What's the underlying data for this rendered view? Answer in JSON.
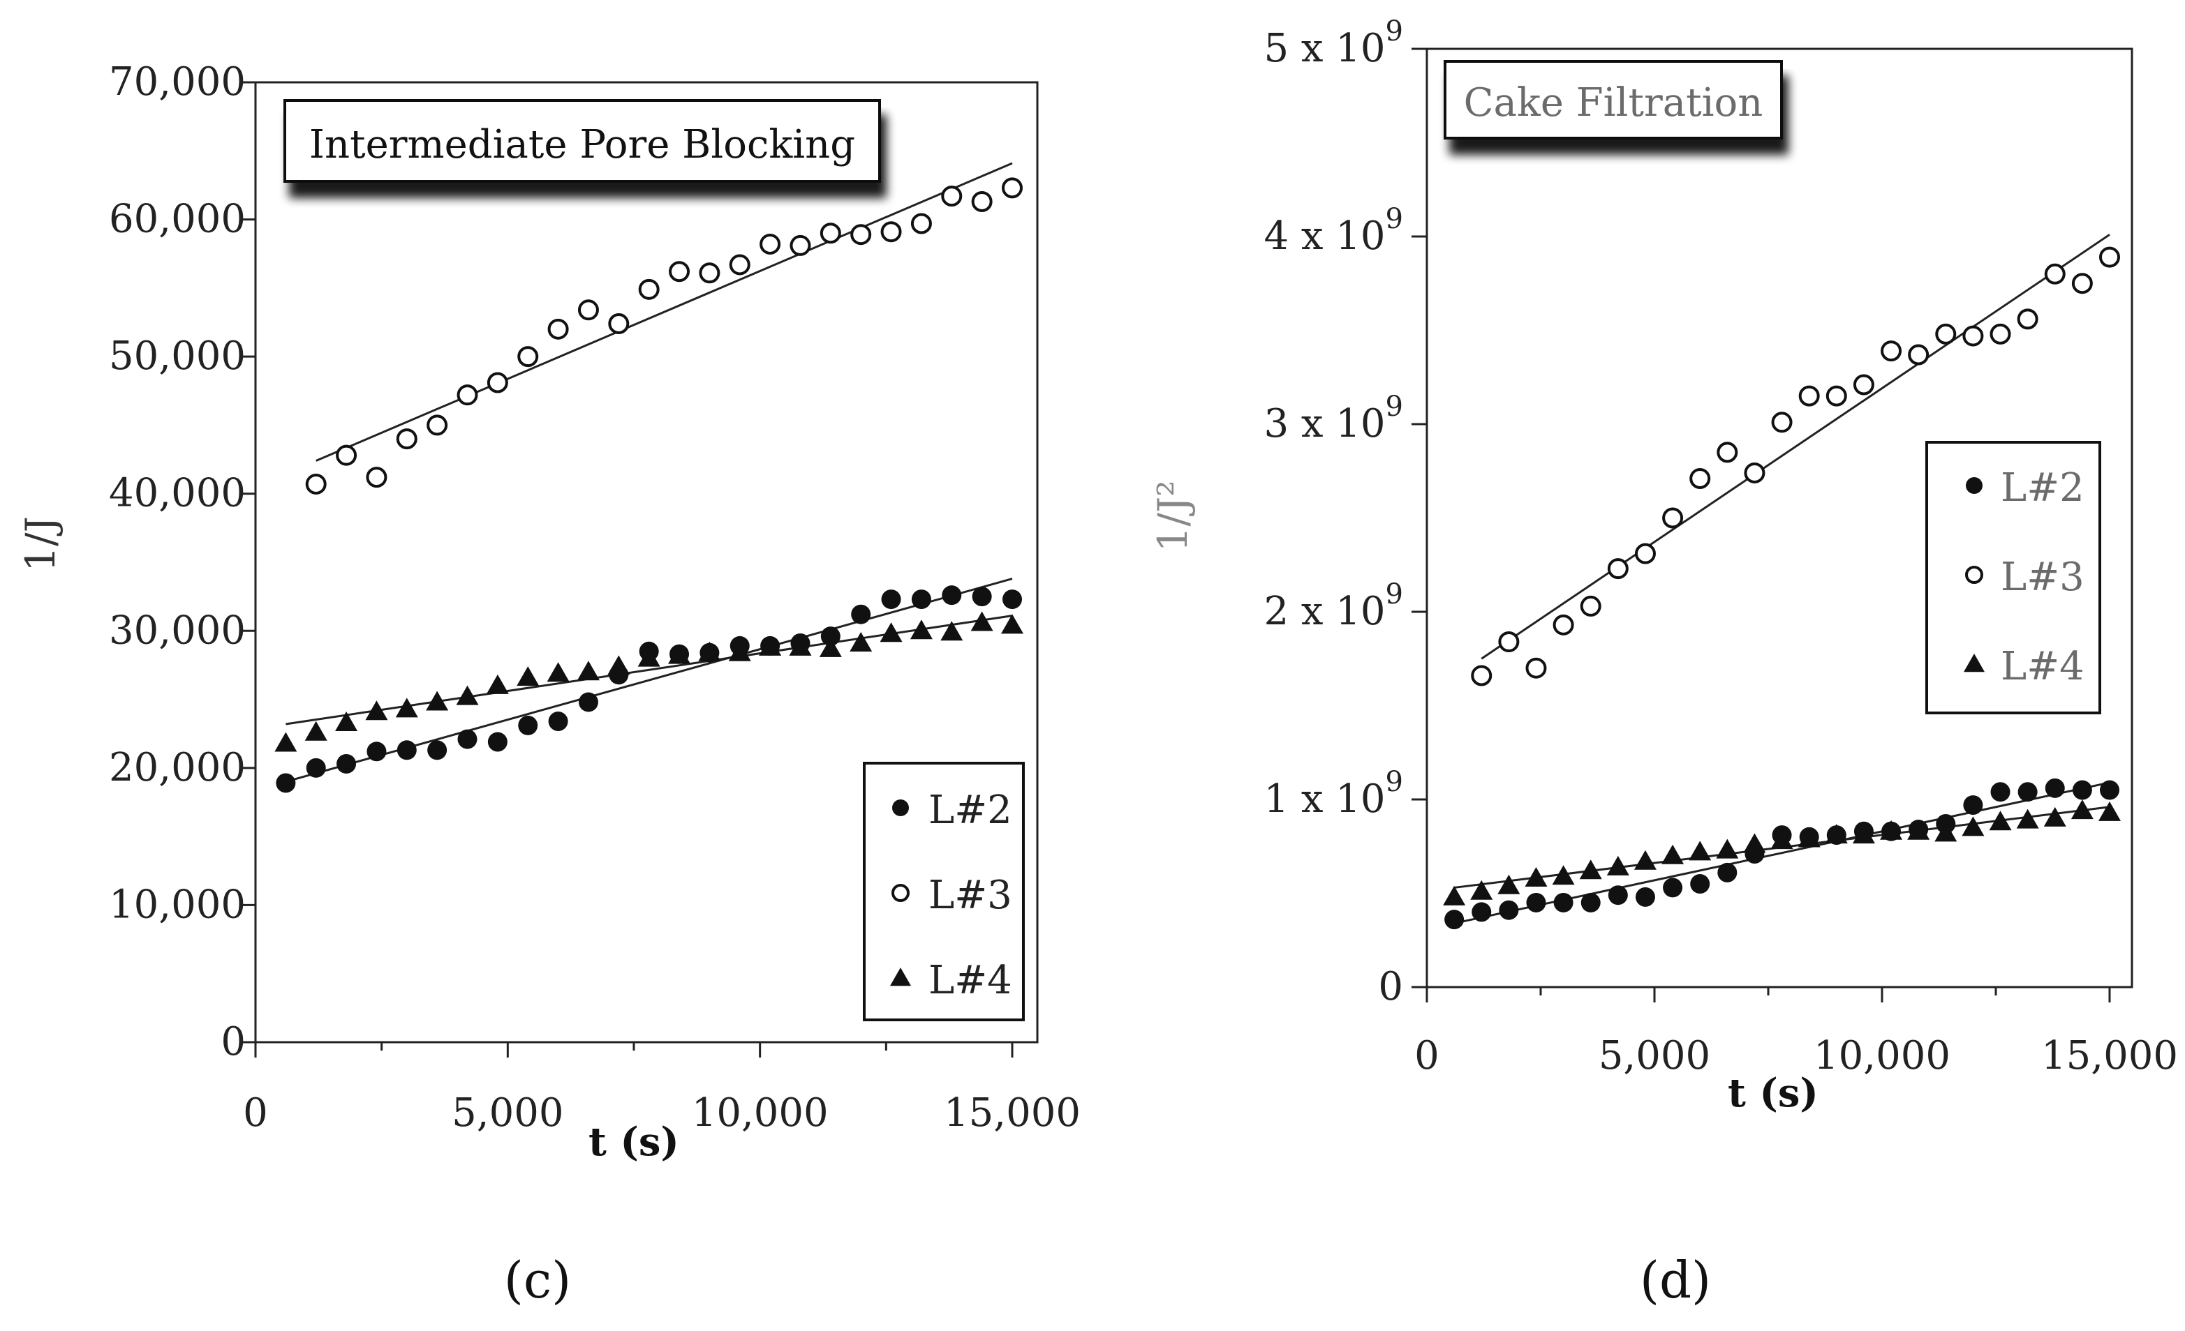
{
  "chart_data": [
    {
      "type": "scatter",
      "panel": "(c)",
      "title": "Intermediate Pore Blocking",
      "xlabel": "t (s)",
      "ylabel": "1/J",
      "xlim": [
        0,
        15000
      ],
      "ylim": [
        0,
        70000
      ],
      "x_ticks": [
        "0",
        "5,000",
        "10,000",
        "15,000"
      ],
      "y_ticks": [
        "0",
        "10,000",
        "20,000",
        "30,000",
        "40,000",
        "50,000",
        "60,000",
        "70,000"
      ],
      "legend_position": "bottom-right",
      "series": [
        {
          "name": "L#2",
          "marker": "filled-circle",
          "x": [
            600,
            1200,
            1800,
            2400,
            3000,
            3600,
            4200,
            4800,
            5400,
            6000,
            6600,
            7200,
            7800,
            8400,
            9000,
            9600,
            10200,
            10800,
            11400,
            12000,
            12600,
            13200,
            13800,
            14400,
            15000
          ],
          "y": [
            18900,
            20000,
            20300,
            21200,
            21300,
            21300,
            22100,
            21900,
            23100,
            23400,
            24800,
            26800,
            28500,
            28300,
            28400,
            28900,
            28900,
            29100,
            29600,
            31200,
            32300,
            32300,
            32600,
            32500,
            32300
          ],
          "fit": [
            [
              600,
              19000
            ],
            [
              15000,
              33800
            ]
          ]
        },
        {
          "name": "L#3",
          "marker": "open-circle",
          "x": [
            1200,
            1800,
            2400,
            3000,
            3600,
            4200,
            4800,
            5400,
            6000,
            6600,
            7200,
            7800,
            8400,
            9000,
            9600,
            10200,
            10800,
            11400,
            12000,
            12600,
            13200,
            13800,
            14400,
            15000
          ],
          "y": [
            40700,
            42800,
            41200,
            44000,
            45000,
            47200,
            48100,
            50000,
            52000,
            53400,
            52400,
            54900,
            56200,
            56100,
            56700,
            58200,
            58100,
            59000,
            58900,
            59100,
            59700,
            61700,
            61300,
            62300
          ],
          "fit": [
            [
              1200,
              42400
            ],
            [
              15000,
              64100
            ]
          ]
        },
        {
          "name": "L#4",
          "marker": "filled-triangle",
          "x": [
            600,
            1200,
            1800,
            2400,
            3000,
            3600,
            4200,
            4800,
            5400,
            6000,
            6600,
            7200,
            7800,
            8400,
            9000,
            9600,
            10200,
            10800,
            11400,
            12000,
            12600,
            13200,
            13800,
            14400,
            15000
          ],
          "y": [
            21800,
            22600,
            23300,
            24100,
            24300,
            24800,
            25200,
            26000,
            26600,
            26900,
            27000,
            27400,
            28000,
            28200,
            28400,
            28400,
            28800,
            28800,
            28700,
            29100,
            29800,
            30000,
            29900,
            30600,
            30400
          ],
          "fit": [
            [
              600,
              23200
            ],
            [
              15000,
              31100
            ]
          ]
        }
      ]
    },
    {
      "type": "scatter",
      "panel": "(d)",
      "title": "Cake Filtration",
      "xlabel": "t (s)",
      "ylabel": "1/J²",
      "xlim": [
        0,
        15000
      ],
      "ylim": [
        0,
        5000000000
      ],
      "x_ticks": [
        "0",
        "5,000",
        "10,000",
        "15,000"
      ],
      "y_ticks": [
        {
          "base": "0",
          "exp": ""
        },
        {
          "base": "1 x 10",
          "exp": "9"
        },
        {
          "base": "2 x 10",
          "exp": "9"
        },
        {
          "base": "3 x 10",
          "exp": "9"
        },
        {
          "base": "4 x 10",
          "exp": "9"
        },
        {
          "base": "5 x 10",
          "exp": "9"
        }
      ],
      "legend_position": "right",
      "series": [
        {
          "name": "L#2",
          "marker": "filled-circle",
          "x": [
            600,
            1200,
            1800,
            2400,
            3000,
            3600,
            4200,
            4800,
            5400,
            6000,
            6600,
            7200,
            7800,
            8400,
            9000,
            9600,
            10200,
            10800,
            11400,
            12000,
            12600,
            13200,
            13800,
            14400,
            15000
          ],
          "y": [
            360000000,
            400000000,
            410000000,
            450000000,
            450000000,
            450000000,
            490000000,
            480000000,
            530000000,
            550000000,
            610000000,
            710000000,
            810000000,
            800000000,
            810000000,
            830000000,
            830000000,
            840000000,
            870000000,
            970000000,
            1040000000,
            1040000000,
            1060000000,
            1050000000,
            1050000000
          ],
          "fit": [
            [
              600,
              340000000
            ],
            [
              15000,
              1090000000
            ]
          ]
        },
        {
          "name": "L#3",
          "marker": "open-circle",
          "x": [
            1200,
            1800,
            2400,
            3000,
            3600,
            4200,
            4800,
            5400,
            6000,
            6600,
            7200,
            7800,
            8400,
            9000,
            9600,
            10200,
            10800,
            11400,
            12000,
            12600,
            13200,
            13800,
            14400,
            15000
          ],
          "y": [
            1660000000,
            1840000000,
            1700000000,
            1930000000,
            2030000000,
            2230000000,
            2310000000,
            2500000000,
            2710000000,
            2850000000,
            2740000000,
            3010000000,
            3150000000,
            3150000000,
            3210000000,
            3390000000,
            3370000000,
            3480000000,
            3470000000,
            3480000000,
            3560000000,
            3800000000,
            3750000000,
            3890000000
          ],
          "fit": [
            [
              1200,
              1750000000
            ],
            [
              15000,
              4010000000
            ]
          ]
        },
        {
          "name": "L#4",
          "marker": "filled-triangle",
          "x": [
            600,
            1200,
            1800,
            2400,
            3000,
            3600,
            4200,
            4800,
            5400,
            6000,
            6600,
            7200,
            7800,
            8400,
            9000,
            9600,
            10200,
            10800,
            11400,
            12000,
            12600,
            13200,
            13800,
            14400,
            15000
          ],
          "y": [
            480000000,
            510000000,
            540000000,
            580000000,
            590000000,
            620000000,
            640000000,
            670000000,
            700000000,
            720000000,
            730000000,
            760000000,
            780000000,
            790000000,
            810000000,
            810000000,
            830000000,
            830000000,
            820000000,
            850000000,
            880000000,
            890000000,
            900000000,
            940000000,
            930000000
          ],
          "fit": [
            [
              600,
              530000000
            ],
            [
              15000,
              960000000
            ]
          ]
        }
      ]
    }
  ]
}
